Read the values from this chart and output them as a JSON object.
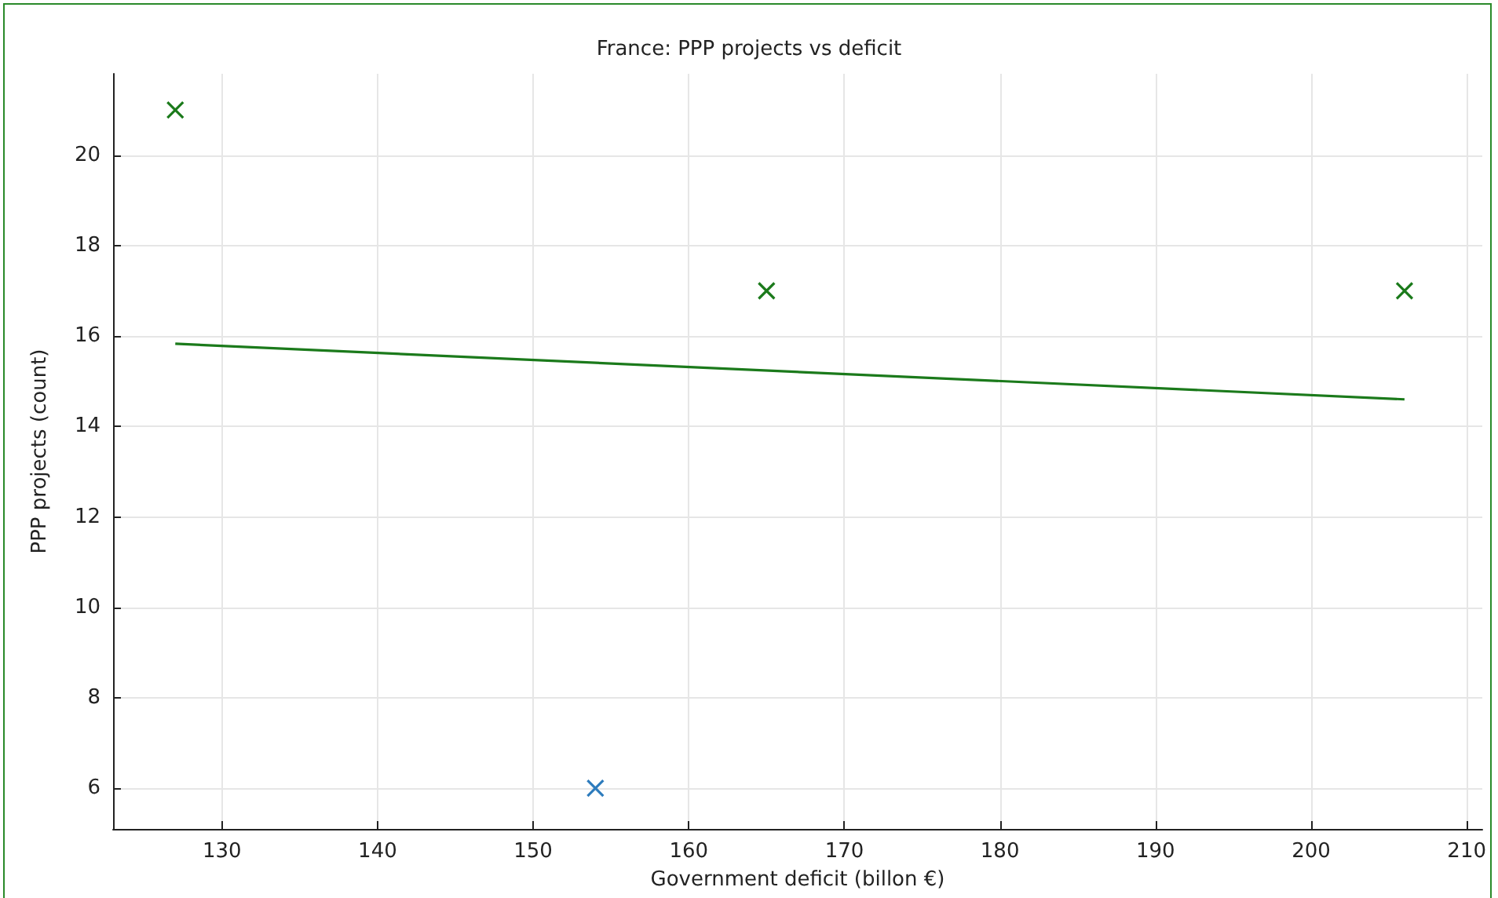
{
  "chart_data": {
    "type": "scatter",
    "title": "France: PPP projects vs deficit",
    "xlabel": "Government deficit (billon €)",
    "ylabel": "PPP projects (count)",
    "x": [
      127,
      154,
      165,
      206
    ],
    "series": [
      {
        "colors": [
          "#1b7a1b",
          "#2e7cbd",
          "#1b7a1b",
          "#1b7a1b"
        ],
        "values": [
          21,
          6,
          17,
          17
        ],
        "marker": "cross"
      },
      {
        "type": "line",
        "color": "#1b7a1b",
        "x": [
          127,
          206
        ],
        "values": [
          15.83,
          14.6
        ],
        "marker": "none",
        "line_style": "solid"
      }
    ],
    "xlim": [
      123,
      211
    ],
    "xticks": [
      130,
      140,
      150,
      160,
      170,
      180,
      190,
      200,
      210
    ],
    "ylim": [
      5.1,
      21.8
    ],
    "yticks": [
      6,
      8,
      10,
      12,
      14,
      16,
      18,
      20
    ],
    "grid": true
  }
}
